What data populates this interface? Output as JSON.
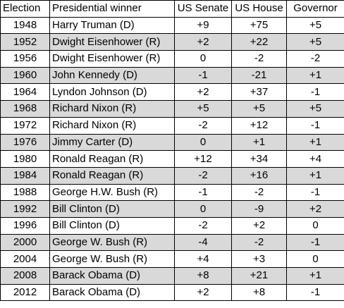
{
  "table": {
    "headers": {
      "election": "Election",
      "winner": "Presidential winner",
      "senate": "US Senate",
      "house": "US House",
      "governor": "Governor"
    },
    "rows": [
      {
        "election": "1948",
        "winner": "Harry Truman (D)",
        "senate": "+9",
        "house": "+75",
        "governor": "+5"
      },
      {
        "election": "1952",
        "winner": "Dwight Eisenhower (R)",
        "senate": "+2",
        "house": "+22",
        "governor": "+5"
      },
      {
        "election": "1956",
        "winner": "Dwight Eisenhower (R)",
        "senate": "0",
        "house": "-2",
        "governor": "-2"
      },
      {
        "election": "1960",
        "winner": "John Kennedy (D)",
        "senate": "-1",
        "house": "-21",
        "governor": "+1"
      },
      {
        "election": "1964",
        "winner": "Lyndon Johnson (D)",
        "senate": "+2",
        "house": "+37",
        "governor": "-1"
      },
      {
        "election": "1968",
        "winner": "Richard Nixon (R)",
        "senate": "+5",
        "house": "+5",
        "governor": "+5"
      },
      {
        "election": "1972",
        "winner": "Richard Nixon (R)",
        "senate": "-2",
        "house": "+12",
        "governor": "-1"
      },
      {
        "election": "1976",
        "winner": "Jimmy Carter (D)",
        "senate": "0",
        "house": "+1",
        "governor": "+1"
      },
      {
        "election": "1980",
        "winner": "Ronald Reagan (R)",
        "senate": "+12",
        "house": "+34",
        "governor": "+4"
      },
      {
        "election": "1984",
        "winner": "Ronald Reagan (R)",
        "senate": "-2",
        "house": "+16",
        "governor": "+1"
      },
      {
        "election": "1988",
        "winner": "George H.W. Bush (R)",
        "senate": "-1",
        "house": "-2",
        "governor": "-1"
      },
      {
        "election": "1992",
        "winner": "Bill Clinton (D)",
        "senate": "0",
        "house": "-9",
        "governor": "+2"
      },
      {
        "election": "1996",
        "winner": "Bill Clinton (D)",
        "senate": "-2",
        "house": "+2",
        "governor": "0"
      },
      {
        "election": "2000",
        "winner": "George W. Bush (R)",
        "senate": "-4",
        "house": "-2",
        "governor": "-1"
      },
      {
        "election": "2004",
        "winner": "George W. Bush (R)",
        "senate": "+4",
        "house": "+3",
        "governor": "0"
      },
      {
        "election": "2008",
        "winner": "Barack Obama (D)",
        "senate": "+8",
        "house": "+21",
        "governor": "+1"
      },
      {
        "election": "2012",
        "winner": "Barack Obama (D)",
        "senate": "+2",
        "house": "+8",
        "governor": "-1"
      }
    ]
  }
}
